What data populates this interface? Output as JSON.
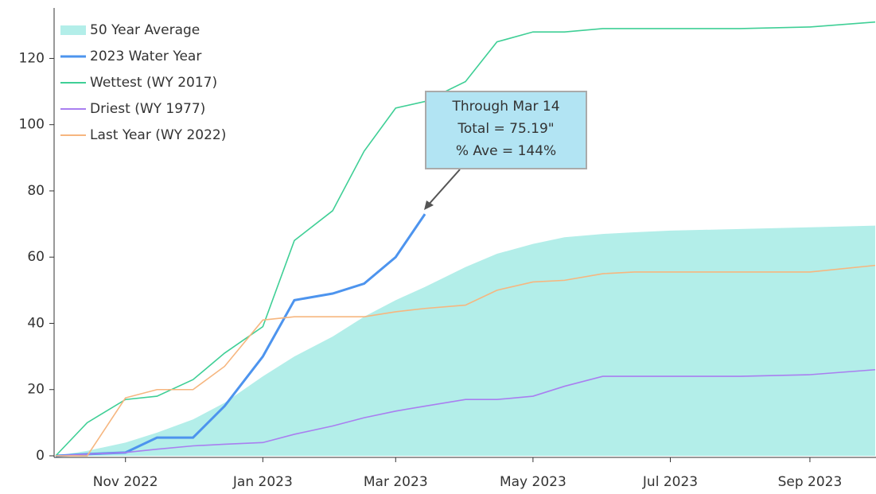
{
  "chart_data": {
    "type": "line",
    "x": [
      "2022-10-01",
      "2022-10-15",
      "2022-11-01",
      "2022-11-15",
      "2022-12-01",
      "2022-12-15",
      "2023-01-01",
      "2023-01-15",
      "2023-02-01",
      "2023-02-15",
      "2023-03-01",
      "2023-03-14",
      "2023-04-01",
      "2023-04-15",
      "2023-05-01",
      "2023-05-15",
      "2023-06-01",
      "2023-06-15",
      "2023-07-01",
      "2023-08-01",
      "2023-09-01",
      "2023-09-30"
    ],
    "series": [
      {
        "name": "50 Year Average",
        "color": "#b3eee9",
        "fill": true,
        "values": [
          0,
          1.5,
          4,
          7,
          11,
          16,
          24,
          30,
          36,
          42,
          47,
          51,
          57,
          61,
          64,
          66,
          67,
          67.5,
          68,
          68.5,
          69,
          69.5
        ]
      },
      {
        "name": "2023 Water Year",
        "color": "#4d94ee",
        "values": [
          0,
          0.5,
          1,
          5.5,
          5.5,
          15,
          30,
          47,
          49,
          52,
          60,
          73,
          null,
          null,
          null,
          null,
          null,
          null,
          null,
          null,
          null,
          null
        ]
      },
      {
        "name": "Wettest (WY 2017)",
        "color": "#3fcf96",
        "values": [
          0,
          10,
          17,
          18,
          23,
          31,
          39,
          65,
          74,
          92,
          105,
          107,
          113,
          125,
          128,
          128,
          129,
          129,
          129,
          129,
          129.5,
          131
        ]
      },
      {
        "name": "Driest (WY 1977)",
        "color": "#a97ff0",
        "values": [
          0,
          0.5,
          1,
          2,
          3,
          3.5,
          4,
          6.5,
          9,
          11.5,
          13.5,
          15,
          17,
          17,
          18,
          21,
          24,
          24,
          24,
          24,
          24.5,
          26
        ]
      },
      {
        "name": "Last Year (WY 2022)",
        "color": "#f6b67f",
        "values": [
          0,
          0,
          17.5,
          20,
          20,
          27,
          41,
          42,
          42,
          42,
          43.5,
          44.5,
          45.5,
          50,
          52.5,
          53,
          55,
          55.5,
          55.5,
          55.5,
          55.5,
          57.5
        ]
      }
    ],
    "xlim": [
      "2022-10-01",
      "2023-09-30"
    ],
    "xticks": [
      {
        "value": "2022-11-01",
        "label": "Nov 2022"
      },
      {
        "value": "2023-01-01",
        "label": "Jan 2023"
      },
      {
        "value": "2023-03-01",
        "label": "Mar 2023"
      },
      {
        "value": "2023-05-01",
        "label": "May 2023"
      },
      {
        "value": "2023-07-01",
        "label": "Jul 2023"
      },
      {
        "value": "2023-09-01",
        "label": "Sep 2023"
      }
    ],
    "ylim": [
      0,
      135
    ],
    "yticks": [
      0,
      20,
      40,
      60,
      80,
      100,
      120
    ],
    "legend": "top-left",
    "annotation": {
      "lines": [
        "Through Mar 14",
        "Total = 75.19\"",
        "% Ave = 144%"
      ]
    }
  }
}
